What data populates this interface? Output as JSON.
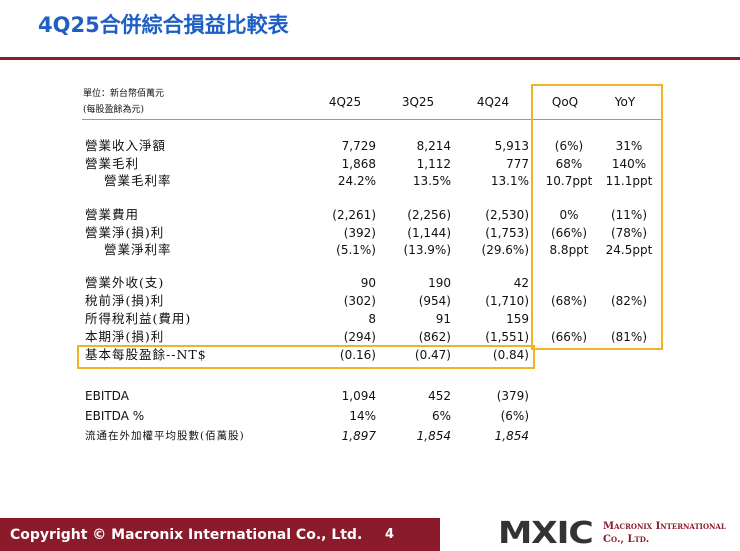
{
  "header": {
    "title": "4Q25合併綜合損益比較表"
  },
  "table": {
    "unit_note": [
      "單位：新台幣佰萬元",
      "(每股盈餘為元)"
    ],
    "columns": [
      "4Q25",
      "3Q25",
      "4Q24",
      "QoQ",
      "YoY"
    ],
    "groups": [
      [
        {
          "label": "營業收入淨額",
          "cells": [
            "7,729",
            "8,214",
            "5,913",
            "(6%)",
            "31%"
          ]
        },
        {
          "label": "營業毛利",
          "cells": [
            "1,868",
            "1,112",
            "777",
            "68%",
            "140%"
          ]
        },
        {
          "label": "營業毛利率",
          "indent": true,
          "cells": [
            "24.2%",
            "13.5%",
            "13.1%",
            "10.7ppt",
            "11.1ppt"
          ]
        }
      ],
      [
        {
          "label": "營業費用",
          "cells": [
            "(2,261)",
            "(2,256)",
            "(2,530)",
            "0%",
            "(11%)"
          ]
        },
        {
          "label": "營業淨(損)利",
          "cells": [
            "(392)",
            "(1,144)",
            "(1,753)",
            "(66%)",
            "(78%)"
          ]
        },
        {
          "label": "營業淨利率",
          "indent": true,
          "cells": [
            "(5.1%)",
            "(13.9%)",
            "(29.6%)",
            "8.8ppt",
            "24.5ppt"
          ]
        }
      ],
      [
        {
          "label": "營業外收(支)",
          "cells": [
            "90",
            "190",
            "42"
          ]
        },
        {
          "label": "稅前淨(損)利",
          "cells": [
            "(302)",
            "(954)",
            "(1,710)",
            "(68%)",
            "(82%)"
          ]
        },
        {
          "label": "所得稅利益(費用)",
          "cells": [
            "8",
            "91",
            "159"
          ]
        },
        {
          "label": "本期淨(損)利",
          "cells": [
            "(294)",
            "(862)",
            "(1,551)",
            "(66%)",
            "(81%)"
          ]
        },
        {
          "label": "基本每股盈餘--NT$",
          "cells": [
            "(0.16)",
            "(0.47)",
            "(0.84)"
          ]
        }
      ],
      [
        {
          "label": "EBITDA",
          "cells": [
            "1,094",
            "452",
            "(379)"
          ]
        },
        {
          "label": "EBITDA %",
          "cells": [
            "14%",
            "6%",
            "(6%)"
          ]
        },
        {
          "label": "流通在外加權平均股數(佰萬股)",
          "italic": true,
          "cells": [
            "1,897",
            "1,854",
            "1,854"
          ]
        }
      ]
    ]
  },
  "footer": {
    "copyright": "Copyright © Macronix International Co., Ltd.",
    "page": "4",
    "logo": "MXIC",
    "company": "Macronix International Co., Ltd."
  }
}
